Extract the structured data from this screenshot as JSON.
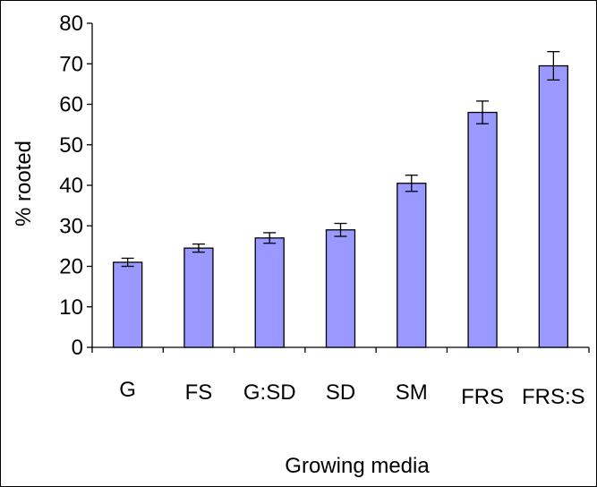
{
  "chart_data": {
    "type": "bar",
    "title": "",
    "xlabel": "Growing media",
    "ylabel": "% rooted",
    "ylim": [
      0,
      80
    ],
    "yticks": [
      0,
      10,
      20,
      30,
      40,
      50,
      60,
      70,
      80
    ],
    "categories": [
      "G",
      "FS",
      "G:SD",
      "SD",
      "SM",
      "FRS",
      "FRS:S"
    ],
    "values": [
      21,
      24.5,
      27,
      29,
      40.5,
      58,
      69.5
    ],
    "errors": [
      1,
      1,
      1.3,
      1.6,
      2,
      2.8,
      3.5
    ],
    "grid": false,
    "legend": "none",
    "colors": {
      "bar_fill": "#9999ff",
      "bar_stroke": "#000000"
    }
  }
}
